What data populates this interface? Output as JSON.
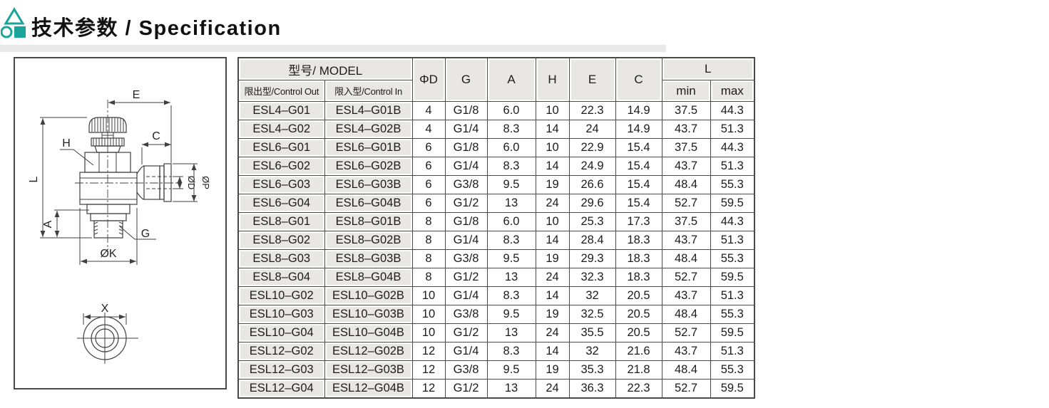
{
  "header": {
    "title": "技术参数 / Specification",
    "accent_color": "#1AA49B"
  },
  "drawing": {
    "labels": {
      "e": "E",
      "c": "C",
      "h": "H",
      "l": "L",
      "a": "A",
      "g": "G",
      "phi_k": "ØK",
      "phi_d": "ØD",
      "phi_p": "ØP",
      "x": "X"
    }
  },
  "table": {
    "header": {
      "model_group": "型号/ MODEL",
      "control_out": "限出型/Control Out",
      "control_in": "限入型/Control In",
      "phi_d": "ΦD",
      "g": "G",
      "a": "A",
      "h": "H",
      "e": "E",
      "c": "C",
      "l_group": "L",
      "l_min": "min",
      "l_max": "max"
    },
    "rows": [
      [
        "ESL4–G01",
        "ESL4–G01B",
        "4",
        "G1/8",
        "6.0",
        "10",
        "22.3",
        "14.9",
        "37.5",
        "44.3"
      ],
      [
        "ESL4–G02",
        "ESL4–G02B",
        "4",
        "G1/4",
        "8.3",
        "14",
        "24",
        "14.9",
        "43.7",
        "51.3"
      ],
      [
        "ESL6–G01",
        "ESL6–G01B",
        "6",
        "G1/8",
        "6.0",
        "10",
        "22.9",
        "15.4",
        "37.5",
        "44.3"
      ],
      [
        "ESL6–G02",
        "ESL6–G02B",
        "6",
        "G1/4",
        "8.3",
        "14",
        "24.9",
        "15.4",
        "43.7",
        "51.3"
      ],
      [
        "ESL6–G03",
        "ESL6–G03B",
        "6",
        "G3/8",
        "9.5",
        "19",
        "26.6",
        "15.4",
        "48.4",
        "55.3"
      ],
      [
        "ESL6–G04",
        "ESL6–G04B",
        "6",
        "G1/2",
        "13",
        "24",
        "29.6",
        "15.4",
        "52.7",
        "59.5"
      ],
      [
        "ESL8–G01",
        "ESL8–G01B",
        "8",
        "G1/8",
        "6.0",
        "10",
        "25.3",
        "17.3",
        "37.5",
        "44.3"
      ],
      [
        "ESL8–G02",
        "ESL8–G02B",
        "8",
        "G1/4",
        "8.3",
        "14",
        "28.4",
        "18.3",
        "43.7",
        "51.3"
      ],
      [
        "ESL8–G03",
        "ESL8–G03B",
        "8",
        "G3/8",
        "9.5",
        "19",
        "29.3",
        "18.3",
        "48.4",
        "55.3"
      ],
      [
        "ESL8–G04",
        "ESL8–G04B",
        "8",
        "G1/2",
        "13",
        "24",
        "32.3",
        "18.3",
        "52.7",
        "59.5"
      ],
      [
        "ESL10–G02",
        "ESL10–G02B",
        "10",
        "G1/4",
        "8.3",
        "14",
        "32",
        "20.5",
        "43.7",
        "51.3"
      ],
      [
        "ESL10–G03",
        "ESL10–G03B",
        "10",
        "G3/8",
        "9.5",
        "19",
        "32.5",
        "20.5",
        "48.4",
        "55.3"
      ],
      [
        "ESL10–G04",
        "ESL10–G04B",
        "10",
        "G1/2",
        "13",
        "24",
        "35.5",
        "20.5",
        "52.7",
        "59.5"
      ],
      [
        "ESL12–G02",
        "ESL12–G02B",
        "12",
        "G1/4",
        "8.3",
        "14",
        "32",
        "21.6",
        "43.7",
        "51.3"
      ],
      [
        "ESL12–G03",
        "ESL12–G03B",
        "12",
        "G3/8",
        "9.5",
        "19",
        "35.3",
        "21.8",
        "48.4",
        "55.3"
      ],
      [
        "ESL12–G04",
        "ESL12–G04B",
        "12",
        "G1/2",
        "13",
        "24",
        "36.3",
        "22.3",
        "52.7",
        "59.5"
      ]
    ]
  }
}
